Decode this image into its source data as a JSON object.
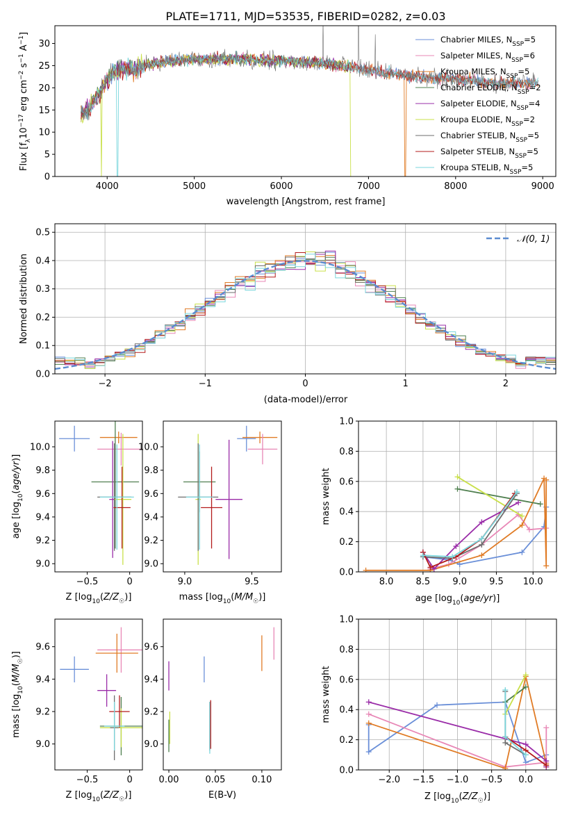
{
  "figure_title": "PLATE=1711, MJD=53535, FIBERID=0282, z=0.03",
  "colors": {
    "Chabrier MILES": "#6a8fd8",
    "Salpeter MILES": "#e887b6",
    "Kroupa MILES": "#e07b25",
    "Chabrier ELODIE": "#4f7f4f",
    "Salpeter ELODIE": "#9a2ca8",
    "Kroupa ELODIE": "#c9e04a",
    "Chabrier STELIB": "#6e6e6e",
    "Salpeter STELIB": "#b31b1b",
    "Kroupa STELIB": "#7ad6dc"
  },
  "chart_data": [
    {
      "id": "spectrum",
      "type": "line",
      "title": "PLATE=1711, MJD=53535, FIBERID=0282, z=0.03",
      "xlabel": "wavelength [Angstrom, rest frame]",
      "ylabel": "Flux [fλ10⁻¹⁷ erg cm⁻² s⁻¹ A⁻¹]",
      "xlim": [
        3400,
        9150
      ],
      "ylim": [
        0,
        34
      ],
      "xticks": [
        4000,
        5000,
        6000,
        7000,
        8000,
        9000
      ],
      "yticks": [
        0,
        5,
        10,
        15,
        20,
        25,
        30
      ],
      "legend_position": "top-right",
      "series": [
        {
          "name": "Chabrier MILES, N_SSP=5"
        },
        {
          "name": "Salpeter MILES, N_SSP=6"
        },
        {
          "name": "Kroupa MILES, N_SSP=5"
        },
        {
          "name": "Chabrier ELODIE, N_SSP=2"
        },
        {
          "name": "Salpeter ELODIE, N_SSP=4"
        },
        {
          "name": "Kroupa ELODIE, N_SSP=2"
        },
        {
          "name": "Chabrier STELIB, N_SSP=5"
        },
        {
          "name": "Salpeter STELIB, N_SSP=5"
        },
        {
          "name": "Kroupa STELIB, N_SSP=5"
        }
      ],
      "continuum": [
        [
          3700,
          14
        ],
        [
          3780,
          15
        ],
        [
          3840,
          17
        ],
        [
          3920,
          19
        ],
        [
          4000,
          22
        ],
        [
          4100,
          24
        ],
        [
          4200,
          24.5
        ],
        [
          4300,
          24
        ],
        [
          4500,
          25.5
        ],
        [
          5000,
          26.5
        ],
        [
          5500,
          26.5
        ],
        [
          6000,
          26
        ],
        [
          6500,
          25.5
        ],
        [
          7000,
          24
        ],
        [
          7500,
          22.5
        ],
        [
          8000,
          22
        ],
        [
          8500,
          21
        ],
        [
          8900,
          21
        ]
      ],
      "dips": [
        {
          "x": 3934,
          "y": 0,
          "series": "Kroupa ELODIE"
        },
        {
          "x": 4120,
          "y": 0,
          "series": "Kroupa STELIB"
        },
        {
          "x": 6800,
          "y": 0,
          "series": "Kroupa ELODIE"
        },
        {
          "x": 7420,
          "y": 0,
          "series": "Kroupa MILES"
        }
      ]
    },
    {
      "id": "residuals",
      "type": "line",
      "xlabel": "(data-model)/error",
      "ylabel": "Normed distribution",
      "xlim": [
        -2.5,
        2.5
      ],
      "ylim": [
        0,
        0.53
      ],
      "xticks": [
        -2,
        -1,
        0,
        1,
        2
      ],
      "yticks": [
        0.0,
        0.1,
        0.2,
        0.3,
        0.4,
        0.5
      ],
      "grid": true,
      "legend_position": "top-right",
      "reference": {
        "name": "𝒩(0, 1)",
        "mean": 0,
        "sigma": 1,
        "color": "#5b8bd0"
      },
      "bin_width": 0.1,
      "histogram_series": [
        "Chabrier MILES",
        "Salpeter MILES",
        "Kroupa MILES",
        "Chabrier ELODIE",
        "Salpeter ELODIE",
        "Kroupa ELODIE",
        "Chabrier STELIB",
        "Salpeter STELIB",
        "Kroupa STELIB"
      ]
    },
    {
      "id": "age_vs_Z",
      "type": "scatter",
      "xlabel": "Z [log₁₀(Z/Z☉)]",
      "ylabel": "age  [log₁₀(age/yr)]",
      "xlim": [
        -0.88,
        0.15
      ],
      "ylim": [
        8.93,
        10.22
      ],
      "xticks": [
        -0.5,
        0.0
      ],
      "yticks": [
        9.0,
        9.2,
        9.4,
        9.6,
        9.8,
        10.0
      ],
      "points": [
        {
          "series": "Chabrier MILES",
          "x": -0.65,
          "y": 10.07,
          "xerr": 0.18,
          "yerr": 0.11
        },
        {
          "series": "Kroupa MILES",
          "x": -0.13,
          "y": 10.08,
          "xerr": 0.22,
          "yerr": 0.05
        },
        {
          "series": "Salpeter MILES",
          "x": -0.1,
          "y": 9.98,
          "xerr": 0.28,
          "yerr": 0.14
        },
        {
          "series": "Chabrier ELODIE",
          "x": -0.17,
          "y": 9.7,
          "xerr": 0.28,
          "yerr": 0.57
        },
        {
          "series": "Salpeter ELODIE",
          "x": -0.2,
          "y": 9.55,
          "xerr": 0.04,
          "yerr": 0.5
        },
        {
          "series": "Kroupa ELODIE",
          "x": -0.08,
          "y": 9.55,
          "xerr": 0.1,
          "yerr": 0.56
        },
        {
          "series": "Chabrier STELIB",
          "x": -0.18,
          "y": 9.57,
          "xerr": 0.2,
          "yerr": 0.46
        },
        {
          "series": "Salpeter STELIB",
          "x": -0.09,
          "y": 9.48,
          "xerr": 0.1,
          "yerr": 0.35
        },
        {
          "series": "Kroupa STELIB",
          "x": -0.15,
          "y": 9.57,
          "xerr": 0.2,
          "yerr": 0.45
        }
      ]
    },
    {
      "id": "age_vs_mass",
      "type": "scatter",
      "xlabel": "mass [log₁₀(M/M☉)]",
      "xlim": [
        8.84,
        9.72
      ],
      "ylim": [
        8.93,
        10.22
      ],
      "xticks": [
        9.0,
        9.5
      ],
      "yticks": [
        9.0,
        9.2,
        9.4,
        9.6,
        9.8,
        10.0
      ],
      "points": [
        {
          "series": "Chabrier MILES",
          "x": 9.46,
          "y": 10.07,
          "xerr": 0.07,
          "yerr": 0.11
        },
        {
          "series": "Kroupa MILES",
          "x": 9.56,
          "y": 10.08,
          "xerr": 0.13,
          "yerr": 0.05
        },
        {
          "series": "Salpeter MILES",
          "x": 9.58,
          "y": 9.98,
          "xerr": 0.11,
          "yerr": 0.13
        },
        {
          "series": "Chabrier ELODIE",
          "x": 9.11,
          "y": 9.7,
          "xerr": 0.12,
          "yerr": 0.26
        },
        {
          "series": "Salpeter ELODIE",
          "x": 9.33,
          "y": 9.55,
          "xerr": 0.1,
          "yerr": 0.51
        },
        {
          "series": "Kroupa ELODIE",
          "x": 9.1,
          "y": 9.55,
          "xerr": 0.02,
          "yerr": 0.56
        },
        {
          "series": "Chabrier STELIB",
          "x": 9.1,
          "y": 9.57,
          "xerr": 0.15,
          "yerr": 0.46
        },
        {
          "series": "Salpeter STELIB",
          "x": 9.2,
          "y": 9.48,
          "xerr": 0.08,
          "yerr": 0.35
        },
        {
          "series": "Kroupa STELIB",
          "x": 9.11,
          "y": 9.57,
          "xerr": 0.1,
          "yerr": 0.45
        }
      ]
    },
    {
      "id": "mass_weight_vs_age",
      "type": "line",
      "xlabel": "age  [log₁₀(age/yr)]",
      "ylabel": "mass weight",
      "xlim": [
        7.62,
        10.32
      ],
      "ylim": [
        0,
        1
      ],
      "xticks": [
        8.0,
        8.5,
        9.0,
        9.5,
        10.0
      ],
      "yticks": [
        0.0,
        0.2,
        0.4,
        0.6,
        0.8,
        1.0
      ],
      "grid": true,
      "series": [
        {
          "color_key": "Chabrier MILES",
          "x": [
            8.5,
            8.85,
            9.0,
            9.85,
            10.15,
            10.18
          ],
          "y": [
            0.1,
            0.08,
            0.05,
            0.13,
            0.3,
            0.43
          ]
        },
        {
          "color_key": "Salpeter MILES",
          "x": [
            8.6,
            8.85,
            9.3,
            9.8,
            9.95,
            10.18
          ],
          "y": [
            0.02,
            0.05,
            0.18,
            0.38,
            0.28,
            0.29
          ]
        },
        {
          "color_key": "Kroupa MILES",
          "x": [
            7.72,
            8.6,
            9.3,
            9.85,
            10.15,
            10.18,
            10.18
          ],
          "y": [
            0.01,
            0.01,
            0.11,
            0.31,
            0.62,
            0.04,
            0.61
          ]
        },
        {
          "color_key": "Chabrier ELODIE",
          "x": [
            8.97,
            10.1
          ],
          "y": [
            0.55,
            0.45
          ]
        },
        {
          "color_key": "Salpeter ELODIE",
          "x": [
            8.5,
            8.65,
            8.95,
            9.3,
            9.8
          ],
          "y": [
            0.13,
            0.02,
            0.17,
            0.33,
            0.46
          ]
        },
        {
          "color_key": "Kroupa ELODIE",
          "x": [
            8.97,
            9.85
          ],
          "y": [
            0.63,
            0.37
          ]
        },
        {
          "color_key": "Chabrier STELIB",
          "x": [
            8.5,
            8.9,
            9.3,
            9.78
          ],
          "y": [
            0.1,
            0.09,
            0.18,
            0.52
          ]
        },
        {
          "color_key": "Salpeter STELIB",
          "x": [
            8.5,
            8.6,
            8.95,
            9.3,
            9.75
          ],
          "y": [
            0.13,
            0.03,
            0.1,
            0.22,
            0.52
          ]
        },
        {
          "color_key": "Kroupa STELIB",
          "x": [
            8.5,
            8.9,
            9.3,
            9.78
          ],
          "y": [
            0.11,
            0.1,
            0.22,
            0.53
          ]
        }
      ]
    },
    {
      "id": "mass_vs_Z",
      "type": "scatter",
      "xlabel": "Z [log₁₀(Z/Z☉)]",
      "ylabel": "mass [log₁₀(M/M☉)]",
      "xlim": [
        -0.88,
        0.15
      ],
      "ylim": [
        8.84,
        9.77
      ],
      "xticks": [
        -0.5,
        0.0
      ],
      "yticks": [
        9.0,
        9.2,
        9.4,
        9.6
      ],
      "points": [
        {
          "series": "Chabrier MILES",
          "x": -0.65,
          "y": 9.46,
          "xerr": 0.17,
          "yerr": 0.08
        },
        {
          "series": "Salpeter MILES",
          "x": -0.1,
          "y": 9.58,
          "xerr": 0.28,
          "yerr": 0.14
        },
        {
          "series": "Kroupa MILES",
          "x": -0.15,
          "y": 9.56,
          "xerr": 0.25,
          "yerr": 0.12
        },
        {
          "series": "Chabrier ELODIE",
          "x": -0.1,
          "y": 9.11,
          "xerr": 0.25,
          "yerr": 0.18
        },
        {
          "series": "Salpeter ELODIE",
          "x": -0.27,
          "y": 9.33,
          "xerr": 0.11,
          "yerr": 0.1
        },
        {
          "series": "Kroupa ELODIE",
          "x": -0.1,
          "y": 9.1,
          "xerr": 0.25,
          "yerr": 0.12
        },
        {
          "series": "Chabrier STELIB",
          "x": -0.18,
          "y": 9.1,
          "xerr": 0.05,
          "yerr": 0.2
        },
        {
          "series": "Salpeter STELIB",
          "x": -0.12,
          "y": 9.2,
          "xerr": 0.12,
          "yerr": 0.1
        },
        {
          "series": "Kroupa STELIB",
          "x": -0.18,
          "y": 9.11,
          "xerr": 0.12,
          "yerr": 0.15
        }
      ]
    },
    {
      "id": "mass_vs_ebv",
      "type": "scatter",
      "xlabel": "E(B-V)",
      "xlim": [
        -0.006,
        0.121
      ],
      "ylim": [
        8.84,
        9.77
      ],
      "xticks": [
        0.0,
        0.05,
        0.1
      ],
      "yticks": [
        9.0,
        9.2,
        9.4,
        9.6
      ],
      "points": [
        {
          "series": "Salpeter ELODIE",
          "x": 0.0,
          "y": 9.42,
          "xerr": 0,
          "yerr": 0.09
        },
        {
          "series": "Kroupa ELODIE",
          "x": 0.001,
          "y": 9.1,
          "xerr": 0,
          "yerr": 0.1
        },
        {
          "series": "Chabrier ELODIE",
          "x": 0.0,
          "y": 9.05,
          "xerr": 0,
          "yerr": 0.1
        },
        {
          "series": "Chabrier MILES",
          "x": 0.038,
          "y": 9.46,
          "xerr": 0,
          "yerr": 0.08
        },
        {
          "series": "Chabrier STELIB",
          "x": 0.044,
          "y": 9.11,
          "xerr": 0,
          "yerr": 0.15
        },
        {
          "series": "Kroupa STELIB",
          "x": 0.044,
          "y": 9.1,
          "xerr": 0,
          "yerr": 0.16
        },
        {
          "series": "Salpeter STELIB",
          "x": 0.045,
          "y": 9.12,
          "xerr": 0,
          "yerr": 0.15
        },
        {
          "series": "Kroupa MILES",
          "x": 0.1,
          "y": 9.56,
          "xerr": 0,
          "yerr": 0.11
        },
        {
          "series": "Salpeter MILES",
          "x": 0.113,
          "y": 9.62,
          "xerr": 0,
          "yerr": 0.1
        }
      ]
    },
    {
      "id": "mass_weight_vs_Z",
      "type": "line",
      "xlabel": "Z [log₁₀(Z/Z☉)]",
      "ylabel": "mass weight",
      "xlim": [
        -2.45,
        0.45
      ],
      "ylim": [
        0,
        1
      ],
      "xticks": [
        -2.0,
        -1.5,
        -1.0,
        -0.5,
        0.0
      ],
      "yticks": [
        0.0,
        0.2,
        0.4,
        0.6,
        0.8,
        1.0
      ],
      "grid": true,
      "series": [
        {
          "color_key": "Chabrier MILES",
          "x": [
            -2.3,
            -2.3,
            -1.3,
            -0.3,
            0.0,
            0.3
          ],
          "y": [
            0.3,
            0.12,
            0.43,
            0.45,
            0.05,
            0.1
          ]
        },
        {
          "color_key": "Salpeter MILES",
          "x": [
            -2.3,
            -0.3,
            0.3,
            0.3
          ],
          "y": [
            0.37,
            0.02,
            0.05,
            0.28
          ]
        },
        {
          "color_key": "Kroupa MILES",
          "x": [
            -2.3,
            -0.3,
            0.0,
            0.3,
            0.3
          ],
          "y": [
            0.31,
            0.01,
            0.62,
            0.04,
            0.02
          ]
        },
        {
          "color_key": "Chabrier ELODIE",
          "x": [
            -0.3,
            0.0
          ],
          "y": [
            0.45,
            0.55
          ]
        },
        {
          "color_key": "Salpeter ELODIE",
          "x": [
            -2.3,
            0.0,
            0.3,
            0.3
          ],
          "y": [
            0.45,
            0.17,
            0.06,
            0.02
          ]
        },
        {
          "color_key": "Kroupa ELODIE",
          "x": [
            -0.3,
            0.0
          ],
          "y": [
            0.37,
            0.63
          ]
        },
        {
          "color_key": "Chabrier STELIB",
          "x": [
            -0.3,
            -0.3,
            0.0
          ],
          "y": [
            0.52,
            0.18,
            0.1
          ]
        },
        {
          "color_key": "Salpeter STELIB",
          "x": [
            -0.3,
            0.0,
            0.3
          ],
          "y": [
            0.22,
            0.13,
            0.03
          ]
        },
        {
          "color_key": "Kroupa STELIB",
          "x": [
            -0.3,
            -0.3,
            0.0
          ],
          "y": [
            0.53,
            0.22,
            0.1
          ]
        }
      ]
    }
  ]
}
